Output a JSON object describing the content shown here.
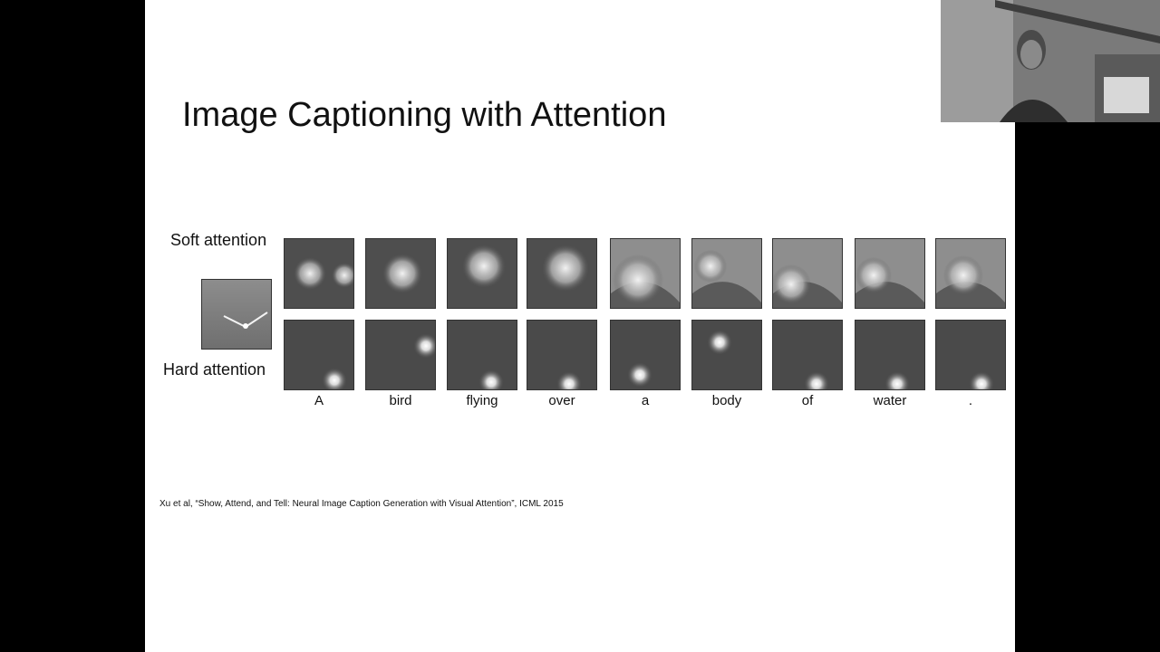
{
  "slide": {
    "title": "Image Captioning with Attention",
    "soft_label": "Soft attention",
    "hard_label": "Hard attention",
    "words": [
      "A",
      "bird",
      "flying",
      "over",
      "a",
      "body",
      "of",
      "water",
      "."
    ],
    "citation": "Xu et al, “Show, Attend, and Tell: Neural Image Caption Generation with Visual Attention”, ICML 2015"
  },
  "colors": {
    "background": "#000000",
    "slide": "#ffffff",
    "text": "#111111"
  },
  "icons": {
    "webcam": "presenter-webcam-feed",
    "source_image": "bird-over-water-image"
  }
}
